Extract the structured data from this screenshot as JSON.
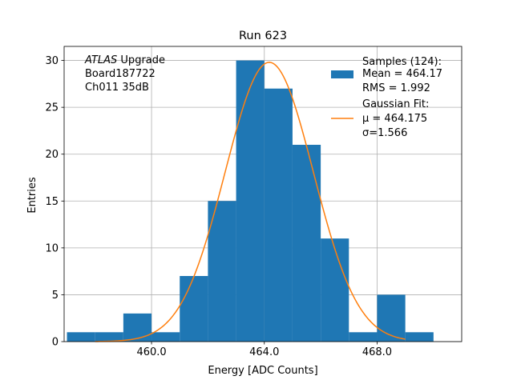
{
  "chart_data": {
    "type": "bar",
    "title": "Run 623",
    "xlabel": "Energy [ADC Counts]",
    "ylabel": "Entries",
    "xlim": [
      456.9,
      471.0
    ],
    "ylim": [
      0,
      31.5
    ],
    "xticks": [
      460.0,
      464.0,
      468.0
    ],
    "xtick_labels": [
      "460.0",
      "464.0",
      "468.0"
    ],
    "yticks": [
      0,
      5,
      10,
      15,
      20,
      25,
      30
    ],
    "ytick_labels": [
      "0",
      "5",
      "10",
      "15",
      "20",
      "25",
      "30"
    ],
    "grid": true,
    "histogram": {
      "name": "Samples (124)",
      "color": "#1f77b4",
      "bin_edges": [
        457.0,
        458.0,
        459.0,
        460.0,
        461.0,
        462.0,
        463.0,
        464.0,
        465.0,
        466.0,
        467.0,
        468.0,
        469.0,
        470.0
      ],
      "counts": [
        1,
        1,
        3,
        1,
        7,
        15,
        30,
        27,
        21,
        11,
        1,
        5,
        1
      ]
    },
    "fit": {
      "name": "Gaussian Fit",
      "type": "gaussian",
      "color": "#ff7f0e",
      "mu": 464.175,
      "sigma": 1.566,
      "amplitude": 29.8,
      "x_range": [
        458.0,
        469.0
      ]
    },
    "legend": {
      "position": "top-right",
      "entries": [
        {
          "lines": [
            "Samples (124):",
            " Mean = 464.17",
            " RMS = 1.992"
          ],
          "marker": "patch",
          "color": "#1f77b4"
        },
        {
          "lines": [
            "Gaussian Fit:",
            " μ = 464.175",
            " σ=1.566"
          ],
          "marker": "line",
          "color": "#ff7f0e"
        }
      ]
    },
    "annotation": {
      "position": "top-left",
      "italic_word": "ATLAS",
      "first_line_rest": " Upgrade",
      "lines": [
        " Board187722",
        " Ch011 35dB"
      ]
    }
  }
}
